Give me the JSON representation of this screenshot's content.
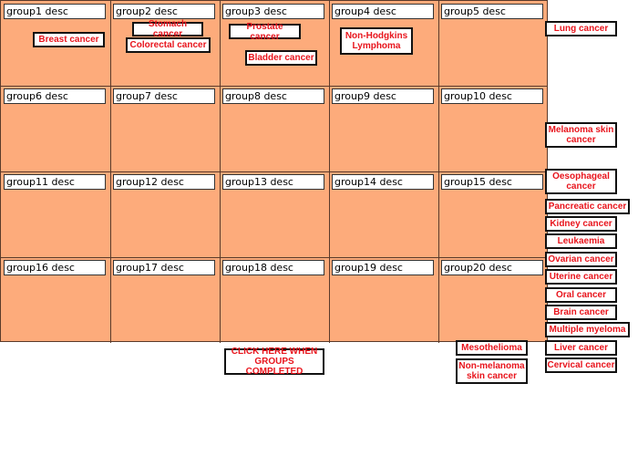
{
  "groups": [
    "group1 desc",
    "group2 desc",
    "group3 desc",
    "group4 desc",
    "group5 desc",
    "group6 desc",
    "group7 desc",
    "group8 desc",
    "group9 desc",
    "group10 desc",
    "group11 desc",
    "group12 desc",
    "group13 desc",
    "group14 desc",
    "group15 desc",
    "group16 desc",
    "group17 desc",
    "group18 desc",
    "group19 desc",
    "group20 desc"
  ],
  "cards": [
    {
      "label": "Breast cancer"
    },
    {
      "label": "Stomach cancer"
    },
    {
      "label": "Colorectal cancer"
    },
    {
      "label": "Prostate cancer"
    },
    {
      "label": "Bladder cancer"
    },
    {
      "label": "Non-Hodgkins Lymphoma"
    },
    {
      "label": "Lung cancer"
    },
    {
      "label": "Melanoma skin cancer"
    },
    {
      "label": "Oesophageal cancer"
    },
    {
      "label": "Pancreatic cancer"
    },
    {
      "label": "Kidney cancer"
    },
    {
      "label": "Leukaemia"
    },
    {
      "label": "Ovarian cancer"
    },
    {
      "label": "Uterine cancer"
    },
    {
      "label": "Oral cancer"
    },
    {
      "label": "Brain cancer"
    },
    {
      "label": "Multiple myeloma"
    },
    {
      "label": "Liver cancer"
    },
    {
      "label": "Cervical cancer"
    },
    {
      "label": "Mesothelioma"
    },
    {
      "label": "Non-melanoma skin cancer"
    }
  ],
  "done_button": "CLICK HERE WHEN GROUPS COMPLETED",
  "colors": {
    "group_bg": "#fdab7b",
    "card_text": "#e8141c"
  }
}
